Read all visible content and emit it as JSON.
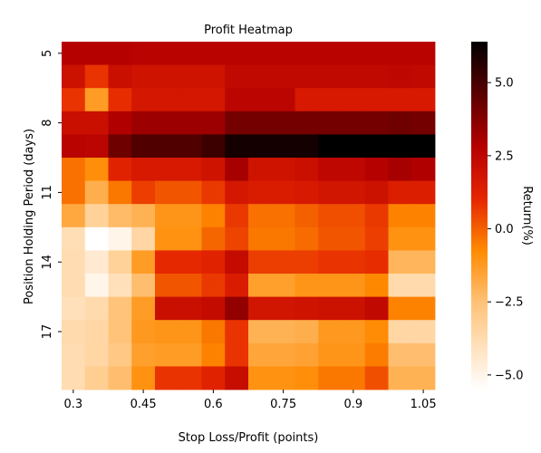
{
  "chart_data": {
    "type": "heatmap",
    "title": "Profit Heatmap",
    "xlabel": "Stop Loss/Profit (points)",
    "ylabel": "Position Holding Period (days)",
    "colorbar_label": "Return(%)",
    "colormap": "gist_heat_r",
    "vmin": -5.5,
    "vmax": 6.4,
    "x": [
      "0.3",
      "0.35",
      "0.4",
      "0.45",
      "0.5",
      "0.55",
      "0.6",
      "0.65",
      "0.7",
      "0.75",
      "0.8",
      "0.85",
      "0.9",
      "0.95",
      "1.0",
      "1.05"
    ],
    "y": [
      "5",
      "6",
      "7",
      "8",
      "9",
      "10",
      "11",
      "12",
      "13",
      "14",
      "15",
      "16",
      "17",
      "18",
      "19"
    ],
    "x_ticklabels": [
      "0.3",
      "0.45",
      "0.6",
      "0.75",
      "0.9",
      "1.05"
    ],
    "y_ticklabels": [
      "5",
      "8",
      "11",
      "14",
      "17"
    ],
    "colorbar_ticks": [
      "5.0",
      "2.5",
      "0.0",
      "−2.5",
      "−5.0"
    ],
    "colorbar_tick_values": [
      5.0,
      2.5,
      0.0,
      -2.5,
      -5.0
    ],
    "values": [
      [
        2.8,
        2.8,
        2.8,
        2.7,
        2.7,
        2.7,
        2.7,
        2.7,
        2.7,
        2.7,
        2.7,
        2.7,
        2.7,
        2.7,
        2.7,
        2.7
      ],
      [
        2.0,
        0.8,
        2.1,
        1.9,
        1.9,
        1.9,
        1.9,
        2.4,
        2.4,
        2.4,
        2.4,
        2.4,
        2.4,
        2.4,
        2.5,
        2.4
      ],
      [
        0.8,
        -1.3,
        0.9,
        1.7,
        1.7,
        1.7,
        1.7,
        2.6,
        2.6,
        2.6,
        1.6,
        1.6,
        1.6,
        1.6,
        1.6,
        1.6
      ],
      [
        2.1,
        2.1,
        2.9,
        3.3,
        3.3,
        3.3,
        3.3,
        4.1,
        4.1,
        4.1,
        4.1,
        4.1,
        4.1,
        4.1,
        4.2,
        4.1
      ],
      [
        2.7,
        2.6,
        4.2,
        4.8,
        4.8,
        4.8,
        5.2,
        6.0,
        6.0,
        6.0,
        6.0,
        6.4,
        6.4,
        6.4,
        6.4,
        6.4
      ],
      [
        -0.3,
        -0.9,
        1.2,
        1.6,
        1.6,
        1.6,
        1.9,
        3.1,
        1.9,
        1.9,
        2.1,
        2.5,
        2.5,
        2.8,
        3.1,
        2.9
      ],
      [
        -0.3,
        -1.9,
        -0.4,
        0.6,
        0.2,
        0.2,
        0.7,
        1.7,
        1.5,
        1.5,
        1.6,
        1.8,
        1.8,
        2.0,
        1.4,
        1.4
      ],
      [
        -1.7,
        -3.3,
        -2.3,
        -2.0,
        -1.1,
        -1.1,
        -0.6,
        0.7,
        -0.3,
        -0.3,
        0.0,
        0.3,
        0.3,
        0.7,
        -0.6,
        -0.6
      ],
      [
        -3.9,
        -5.5,
        -5.0,
        -3.5,
        -1.0,
        -1.0,
        -0.1,
        0.5,
        -0.4,
        -0.4,
        -0.2,
        0.2,
        0.2,
        0.6,
        -1.0,
        -1.0
      ],
      [
        -3.8,
        -4.5,
        -3.3,
        -1.3,
        1.0,
        1.0,
        1.2,
        2.3,
        0.6,
        0.6,
        0.6,
        0.8,
        0.8,
        0.9,
        -2.1,
        -2.1
      ],
      [
        -3.8,
        -5.0,
        -4.0,
        -2.4,
        0.2,
        0.2,
        0.7,
        1.5,
        -1.4,
        -1.4,
        -1.1,
        -1.1,
        -1.1,
        -0.7,
        -3.7,
        -3.7
      ],
      [
        -4.0,
        -3.7,
        -2.6,
        -1.3,
        2.1,
        2.1,
        2.3,
        3.5,
        1.8,
        1.8,
        1.9,
        2.0,
        2.0,
        2.4,
        -0.6,
        -0.6
      ],
      [
        -3.7,
        -3.5,
        -2.6,
        -1.2,
        -1.1,
        -1.1,
        -0.4,
        0.8,
        -2.0,
        -2.0,
        -1.9,
        -1.2,
        -1.2,
        -0.8,
        -3.5,
        -3.5
      ],
      [
        -3.8,
        -3.5,
        -2.8,
        -1.4,
        -1.3,
        -1.3,
        -0.6,
        0.8,
        -1.6,
        -1.6,
        -1.5,
        -1.1,
        -1.1,
        -0.5,
        -2.4,
        -2.4
      ],
      [
        -3.8,
        -3.1,
        -2.4,
        -1.0,
        0.8,
        0.8,
        1.2,
        2.2,
        -1.0,
        -1.0,
        -0.9,
        -0.4,
        -0.4,
        0.3,
        -2.0,
        -2.0
      ]
    ]
  }
}
